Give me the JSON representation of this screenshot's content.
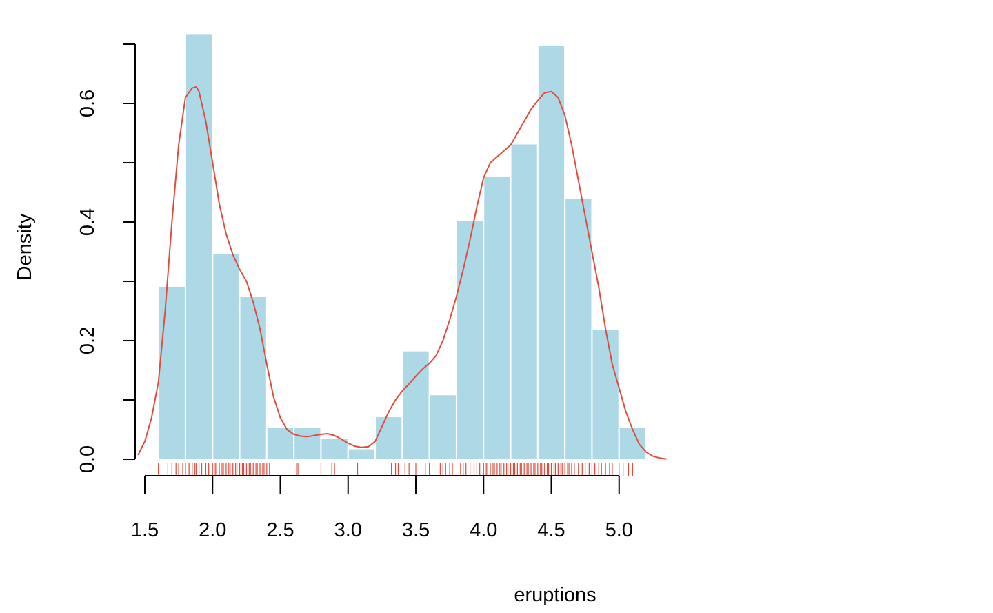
{
  "chart_data": {
    "type": "bar",
    "title": "",
    "xlabel": "eruptions",
    "ylabel": "Density",
    "xlim": [
      1.45,
      5.35
    ],
    "ylim": [
      0,
      0.72
    ],
    "grid": false,
    "bar_color": "#add8e6",
    "bar_edge_color": "#ffffff",
    "density_color": "#e04b3c",
    "rug_color": "#e04b3c",
    "x_ticks": [
      1.5,
      2.0,
      2.5,
      3.0,
      3.5,
      4.0,
      4.5,
      5.0
    ],
    "x_tick_labels": [
      "1.5",
      "2.0",
      "2.5",
      "3.0",
      "3.5",
      "4.0",
      "4.5",
      "5.0"
    ],
    "y_ticks": [
      0.0,
      0.1,
      0.2,
      0.3,
      0.4,
      0.5,
      0.6,
      0.7
    ],
    "y_tick_labels": [
      "0.0",
      "",
      "0.2",
      "",
      "0.4",
      "",
      "0.6",
      ""
    ],
    "bins": [
      {
        "x0": 1.6,
        "x1": 1.8,
        "density": 0.292
      },
      {
        "x0": 1.8,
        "x1": 2.0,
        "density": 0.717
      },
      {
        "x0": 2.0,
        "x1": 2.2,
        "density": 0.347
      },
      {
        "x0": 2.2,
        "x1": 2.4,
        "density": 0.275
      },
      {
        "x0": 2.4,
        "x1": 2.6,
        "density": 0.054
      },
      {
        "x0": 2.6,
        "x1": 2.8,
        "density": 0.054
      },
      {
        "x0": 2.8,
        "x1": 3.0,
        "density": 0.036
      },
      {
        "x0": 3.0,
        "x1": 3.2,
        "density": 0.018
      },
      {
        "x0": 3.2,
        "x1": 3.4,
        "density": 0.072
      },
      {
        "x0": 3.4,
        "x1": 3.6,
        "density": 0.183
      },
      {
        "x0": 3.6,
        "x1": 3.8,
        "density": 0.109
      },
      {
        "x0": 3.8,
        "x1": 4.0,
        "density": 0.403
      },
      {
        "x0": 4.0,
        "x1": 4.2,
        "density": 0.478
      },
      {
        "x0": 4.2,
        "x1": 4.4,
        "density": 0.532
      },
      {
        "x0": 4.4,
        "x1": 4.6,
        "density": 0.698
      },
      {
        "x0": 4.6,
        "x1": 4.8,
        "density": 0.44
      },
      {
        "x0": 4.8,
        "x1": 5.0,
        "density": 0.219
      },
      {
        "x0": 5.0,
        "x1": 5.2,
        "density": 0.054
      }
    ],
    "density_curve": {
      "x": [
        1.45,
        1.5,
        1.55,
        1.6,
        1.65,
        1.7,
        1.75,
        1.8,
        1.85,
        1.88,
        1.9,
        1.95,
        2.0,
        2.05,
        2.1,
        2.15,
        2.2,
        2.25,
        2.3,
        2.35,
        2.4,
        2.45,
        2.5,
        2.55,
        2.6,
        2.65,
        2.7,
        2.75,
        2.8,
        2.85,
        2.9,
        2.95,
        3.0,
        3.05,
        3.1,
        3.15,
        3.2,
        3.25,
        3.3,
        3.35,
        3.4,
        3.45,
        3.5,
        3.55,
        3.6,
        3.65,
        3.7,
        3.75,
        3.8,
        3.85,
        3.9,
        3.95,
        4.0,
        4.05,
        4.1,
        4.15,
        4.2,
        4.25,
        4.3,
        4.35,
        4.4,
        4.45,
        4.5,
        4.55,
        4.6,
        4.65,
        4.7,
        4.75,
        4.8,
        4.85,
        4.9,
        4.95,
        5.0,
        5.05,
        5.1,
        5.15,
        5.2,
        5.25,
        5.3,
        5.35
      ],
      "y": [
        0.007,
        0.03,
        0.07,
        0.13,
        0.25,
        0.4,
        0.53,
        0.61,
        0.626,
        0.628,
        0.62,
        0.57,
        0.5,
        0.43,
        0.38,
        0.345,
        0.32,
        0.3,
        0.265,
        0.22,
        0.16,
        0.105,
        0.07,
        0.05,
        0.042,
        0.039,
        0.038,
        0.04,
        0.042,
        0.043,
        0.04,
        0.034,
        0.027,
        0.022,
        0.02,
        0.021,
        0.03,
        0.055,
        0.08,
        0.1,
        0.115,
        0.127,
        0.14,
        0.152,
        0.162,
        0.175,
        0.2,
        0.235,
        0.275,
        0.32,
        0.37,
        0.425,
        0.475,
        0.5,
        0.51,
        0.52,
        0.53,
        0.55,
        0.57,
        0.59,
        0.605,
        0.618,
        0.62,
        0.61,
        0.58,
        0.53,
        0.47,
        0.41,
        0.35,
        0.29,
        0.22,
        0.16,
        0.12,
        0.08,
        0.05,
        0.025,
        0.012,
        0.005,
        0.002,
        0.0005
      ]
    },
    "rug": [
      1.6,
      1.67,
      1.7,
      1.73,
      1.75,
      1.78,
      1.8,
      1.82,
      1.83,
      1.85,
      1.87,
      1.88,
      1.9,
      1.92,
      1.95,
      1.97,
      1.98,
      2.0,
      2.02,
      2.03,
      2.05,
      2.07,
      2.08,
      2.1,
      2.12,
      2.13,
      2.15,
      2.17,
      2.18,
      2.2,
      2.22,
      2.23,
      2.25,
      2.27,
      2.28,
      2.3,
      2.32,
      2.33,
      2.35,
      2.37,
      2.38,
      2.4,
      2.42,
      2.62,
      2.63,
      2.8,
      2.88,
      2.9,
      3.07,
      3.32,
      3.35,
      3.37,
      3.42,
      3.45,
      3.5,
      3.57,
      3.6,
      3.68,
      3.7,
      3.72,
      3.75,
      3.77,
      3.83,
      3.85,
      3.87,
      3.9,
      3.93,
      3.95,
      3.97,
      3.98,
      4.0,
      4.02,
      4.03,
      4.05,
      4.07,
      4.08,
      4.1,
      4.12,
      4.13,
      4.15,
      4.17,
      4.18,
      4.2,
      4.22,
      4.23,
      4.25,
      4.27,
      4.28,
      4.3,
      4.32,
      4.33,
      4.35,
      4.37,
      4.38,
      4.4,
      4.42,
      4.43,
      4.45,
      4.47,
      4.48,
      4.5,
      4.52,
      4.53,
      4.55,
      4.57,
      4.58,
      4.6,
      4.62,
      4.63,
      4.65,
      4.67,
      4.7,
      4.72,
      4.73,
      4.75,
      4.77,
      4.78,
      4.8,
      4.82,
      4.83,
      4.85,
      4.87,
      4.9,
      4.93,
      4.95,
      5.0,
      5.03,
      5.07,
      5.1
    ]
  }
}
